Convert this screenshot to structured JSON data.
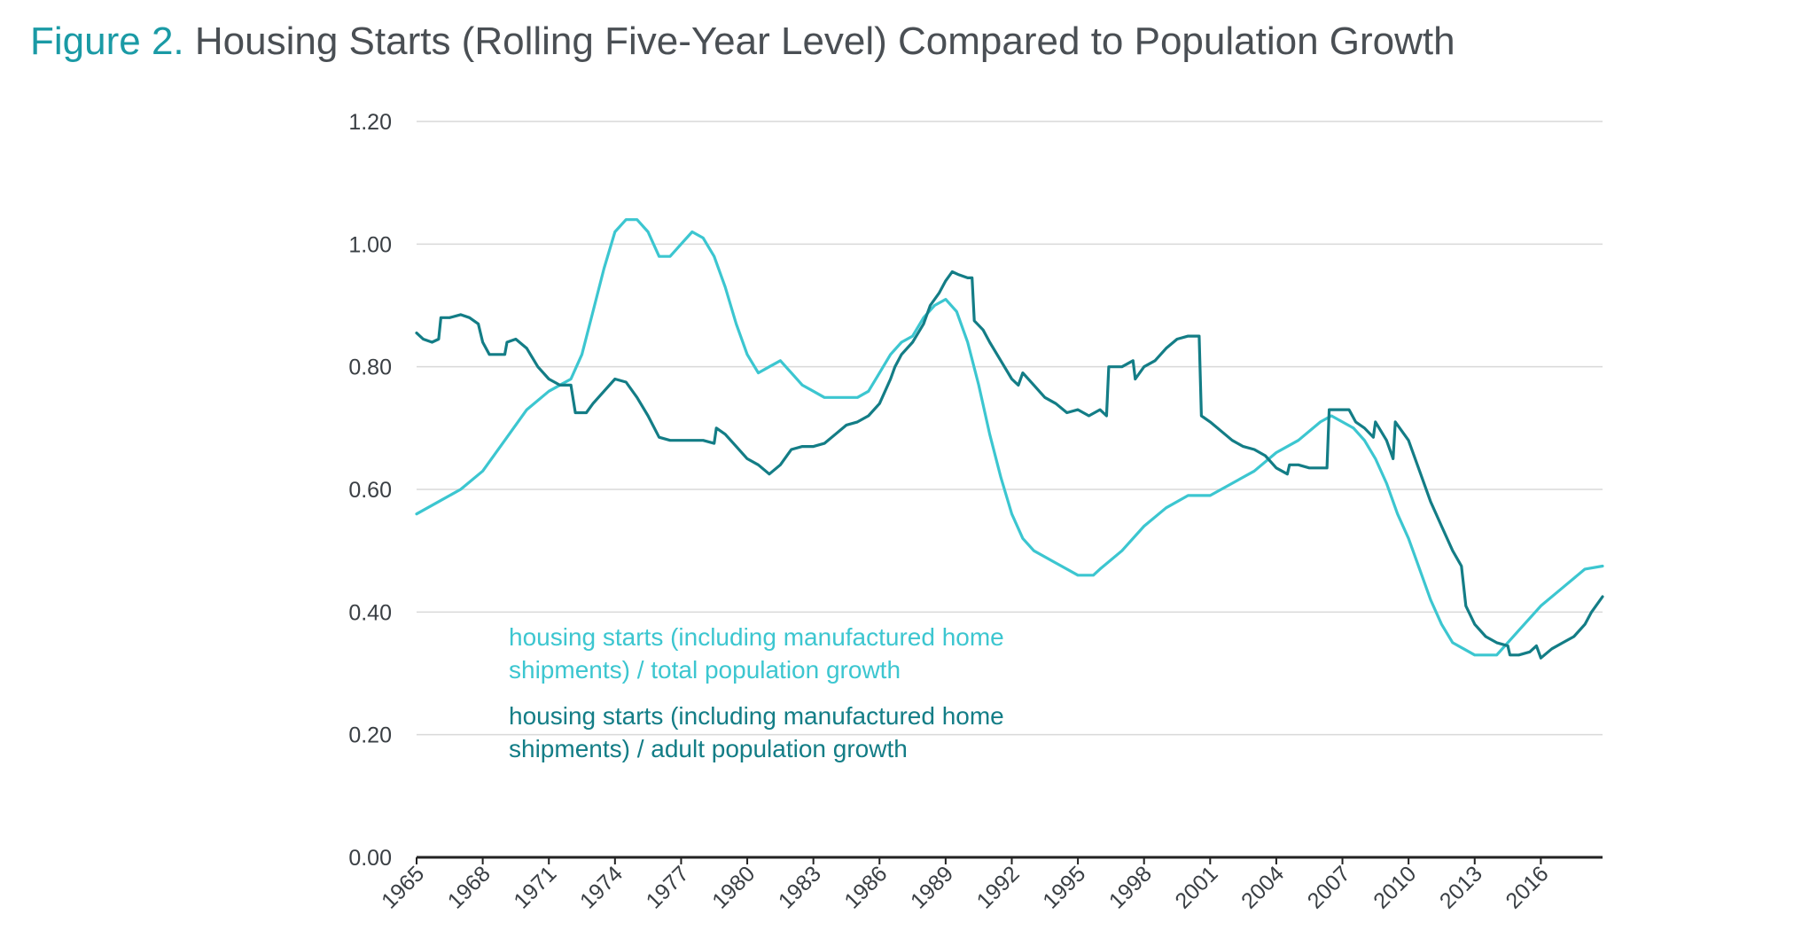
{
  "title": {
    "prefix": "Figure 2.",
    "main": "Housing Starts (Rolling Five-Year Level) Compared to Population Growth"
  },
  "colors": {
    "total": "#3cc6d0",
    "adult": "#137d86",
    "grid": "#d9d9d9",
    "axis": "#222222"
  },
  "chart_data": {
    "type": "line",
    "ylim": [
      0,
      1.2
    ],
    "xlim": [
      1965,
      2018.8
    ],
    "y_ticks": [
      "0.00",
      "0.20",
      "0.40",
      "0.60",
      "0.80",
      "1.00",
      "1.20"
    ],
    "x_ticks": [
      "1965",
      "1968",
      "1971",
      "1974",
      "1977",
      "1980",
      "1983",
      "1986",
      "1989",
      "1992",
      "1995",
      "1998",
      "2001",
      "2004",
      "2007",
      "2010",
      "2013",
      "2016"
    ],
    "grid": true,
    "legend_position": "lower-left inside",
    "series": [
      {
        "name": "housing starts (including manufactured home shipments) / total population growth",
        "points": [
          [
            1965,
            0.56
          ],
          [
            1966,
            0.58
          ],
          [
            1967,
            0.6
          ],
          [
            1968,
            0.63
          ],
          [
            1969,
            0.68
          ],
          [
            1970,
            0.73
          ],
          [
            1971,
            0.76
          ],
          [
            1972,
            0.78
          ],
          [
            1972.5,
            0.82
          ],
          [
            1973,
            0.89
          ],
          [
            1973.5,
            0.96
          ],
          [
            1974,
            1.02
          ],
          [
            1974.5,
            1.04
          ],
          [
            1975,
            1.04
          ],
          [
            1975.5,
            1.02
          ],
          [
            1976,
            0.98
          ],
          [
            1976.5,
            0.98
          ],
          [
            1977,
            1.0
          ],
          [
            1977.5,
            1.02
          ],
          [
            1978,
            1.01
          ],
          [
            1978.5,
            0.98
          ],
          [
            1979,
            0.93
          ],
          [
            1979.5,
            0.87
          ],
          [
            1980,
            0.82
          ],
          [
            1980.5,
            0.79
          ],
          [
            1981,
            0.8
          ],
          [
            1981.5,
            0.81
          ],
          [
            1982,
            0.79
          ],
          [
            1982.5,
            0.77
          ],
          [
            1983,
            0.76
          ],
          [
            1983.5,
            0.75
          ],
          [
            1984,
            0.75
          ],
          [
            1985,
            0.75
          ],
          [
            1985.5,
            0.76
          ],
          [
            1986,
            0.79
          ],
          [
            1986.5,
            0.82
          ],
          [
            1987,
            0.84
          ],
          [
            1987.5,
            0.85
          ],
          [
            1988,
            0.88
          ],
          [
            1988.5,
            0.9
          ],
          [
            1989,
            0.91
          ],
          [
            1989.5,
            0.89
          ],
          [
            1990,
            0.84
          ],
          [
            1990.5,
            0.77
          ],
          [
            1991,
            0.69
          ],
          [
            1991.5,
            0.62
          ],
          [
            1992,
            0.56
          ],
          [
            1992.5,
            0.52
          ],
          [
            1993,
            0.5
          ],
          [
            1994,
            0.48
          ],
          [
            1995,
            0.46
          ],
          [
            1995.7,
            0.46
          ],
          [
            1996,
            0.47
          ],
          [
            1997,
            0.5
          ],
          [
            1998,
            0.54
          ],
          [
            1999,
            0.57
          ],
          [
            2000,
            0.59
          ],
          [
            2001,
            0.59
          ],
          [
            2002,
            0.61
          ],
          [
            2003,
            0.63
          ],
          [
            2004,
            0.66
          ],
          [
            2005,
            0.68
          ],
          [
            2006,
            0.71
          ],
          [
            2006.5,
            0.72
          ],
          [
            2007,
            0.71
          ],
          [
            2007.5,
            0.7
          ],
          [
            2008,
            0.68
          ],
          [
            2008.5,
            0.65
          ],
          [
            2009,
            0.61
          ],
          [
            2009.5,
            0.56
          ],
          [
            2010,
            0.52
          ],
          [
            2010.5,
            0.47
          ],
          [
            2011,
            0.42
          ],
          [
            2011.5,
            0.38
          ],
          [
            2012,
            0.35
          ],
          [
            2012.5,
            0.34
          ],
          [
            2013,
            0.33
          ],
          [
            2014,
            0.33
          ],
          [
            2015,
            0.37
          ],
          [
            2016,
            0.41
          ],
          [
            2017,
            0.44
          ],
          [
            2018,
            0.47
          ],
          [
            2018.8,
            0.475
          ]
        ]
      },
      {
        "name": "housing starts (including manufactured home shipments) / adult population growth",
        "points": [
          [
            1965,
            0.855
          ],
          [
            1965.3,
            0.845
          ],
          [
            1965.7,
            0.84
          ],
          [
            1966,
            0.845
          ],
          [
            1966.1,
            0.88
          ],
          [
            1966.5,
            0.88
          ],
          [
            1967,
            0.885
          ],
          [
            1967.4,
            0.88
          ],
          [
            1967.8,
            0.87
          ],
          [
            1968,
            0.84
          ],
          [
            1968.3,
            0.82
          ],
          [
            1968.6,
            0.82
          ],
          [
            1969,
            0.82
          ],
          [
            1969.1,
            0.84
          ],
          [
            1969.5,
            0.845
          ],
          [
            1970,
            0.83
          ],
          [
            1970.5,
            0.8
          ],
          [
            1971,
            0.78
          ],
          [
            1971.5,
            0.77
          ],
          [
            1972,
            0.77
          ],
          [
            1972.2,
            0.725
          ],
          [
            1972.7,
            0.725
          ],
          [
            1973,
            0.74
          ],
          [
            1973.5,
            0.76
          ],
          [
            1974,
            0.78
          ],
          [
            1974.5,
            0.775
          ],
          [
            1975,
            0.75
          ],
          [
            1975.5,
            0.72
          ],
          [
            1976,
            0.685
          ],
          [
            1976.5,
            0.68
          ],
          [
            1977,
            0.68
          ],
          [
            1977.5,
            0.68
          ],
          [
            1978,
            0.68
          ],
          [
            1978.5,
            0.675
          ],
          [
            1978.6,
            0.7
          ],
          [
            1979,
            0.69
          ],
          [
            1979.5,
            0.67
          ],
          [
            1980,
            0.65
          ],
          [
            1980.5,
            0.64
          ],
          [
            1981,
            0.625
          ],
          [
            1981.5,
            0.64
          ],
          [
            1982,
            0.665
          ],
          [
            1982.5,
            0.67
          ],
          [
            1983,
            0.67
          ],
          [
            1983.5,
            0.675
          ],
          [
            1984,
            0.69
          ],
          [
            1984.5,
            0.705
          ],
          [
            1985,
            0.71
          ],
          [
            1985.5,
            0.72
          ],
          [
            1986,
            0.74
          ],
          [
            1986.5,
            0.78
          ],
          [
            1986.7,
            0.8
          ],
          [
            1987,
            0.82
          ],
          [
            1987.5,
            0.84
          ],
          [
            1988,
            0.87
          ],
          [
            1988.3,
            0.9
          ],
          [
            1988.7,
            0.92
          ],
          [
            1989,
            0.94
          ],
          [
            1989.3,
            0.955
          ],
          [
            1989.6,
            0.95
          ],
          [
            1990,
            0.945
          ],
          [
            1990.2,
            0.945
          ],
          [
            1990.3,
            0.875
          ],
          [
            1990.7,
            0.86
          ],
          [
            1991,
            0.84
          ],
          [
            1991.5,
            0.81
          ],
          [
            1992,
            0.78
          ],
          [
            1992.3,
            0.77
          ],
          [
            1992.5,
            0.79
          ],
          [
            1993,
            0.77
          ],
          [
            1993.5,
            0.75
          ],
          [
            1994,
            0.74
          ],
          [
            1994.5,
            0.725
          ],
          [
            1995,
            0.73
          ],
          [
            1995.5,
            0.72
          ],
          [
            1996,
            0.73
          ],
          [
            1996.3,
            0.72
          ],
          [
            1996.4,
            0.8
          ],
          [
            1997,
            0.8
          ],
          [
            1997.5,
            0.81
          ],
          [
            1997.6,
            0.78
          ],
          [
            1998,
            0.8
          ],
          [
            1998.5,
            0.81
          ],
          [
            1999,
            0.83
          ],
          [
            1999.5,
            0.845
          ],
          [
            2000,
            0.85
          ],
          [
            2000.5,
            0.85
          ],
          [
            2000.6,
            0.72
          ],
          [
            2001,
            0.71
          ],
          [
            2001.5,
            0.695
          ],
          [
            2002,
            0.68
          ],
          [
            2002.5,
            0.67
          ],
          [
            2003,
            0.665
          ],
          [
            2003.5,
            0.655
          ],
          [
            2004,
            0.635
          ],
          [
            2004.5,
            0.625
          ],
          [
            2004.6,
            0.64
          ],
          [
            2005,
            0.64
          ],
          [
            2005.5,
            0.635
          ],
          [
            2006,
            0.635
          ],
          [
            2006.3,
            0.635
          ],
          [
            2006.4,
            0.73
          ],
          [
            2007,
            0.73
          ],
          [
            2007.3,
            0.73
          ],
          [
            2007.6,
            0.71
          ],
          [
            2008,
            0.7
          ],
          [
            2008.4,
            0.685
          ],
          [
            2008.5,
            0.71
          ],
          [
            2009,
            0.68
          ],
          [
            2009.3,
            0.65
          ],
          [
            2009.4,
            0.71
          ],
          [
            2010,
            0.68
          ],
          [
            2010.5,
            0.63
          ],
          [
            2011,
            0.58
          ],
          [
            2011.5,
            0.54
          ],
          [
            2012,
            0.5
          ],
          [
            2012.4,
            0.475
          ],
          [
            2012.6,
            0.41
          ],
          [
            2013,
            0.38
          ],
          [
            2013.5,
            0.36
          ],
          [
            2014,
            0.35
          ],
          [
            2014.5,
            0.345
          ],
          [
            2014.6,
            0.33
          ],
          [
            2015,
            0.33
          ],
          [
            2015.5,
            0.335
          ],
          [
            2015.8,
            0.345
          ],
          [
            2016,
            0.325
          ],
          [
            2016.5,
            0.34
          ],
          [
            2017,
            0.35
          ],
          [
            2017.5,
            0.36
          ],
          [
            2018,
            0.38
          ],
          [
            2018.3,
            0.4
          ],
          [
            2018.8,
            0.425
          ]
        ]
      }
    ]
  },
  "legend": {
    "total_line1": "housing starts (including manufactured home",
    "total_line2": "shipments) / total population growth",
    "adult_line1": "housing starts (including manufactured home",
    "adult_line2": "shipments) / adult population growth"
  }
}
